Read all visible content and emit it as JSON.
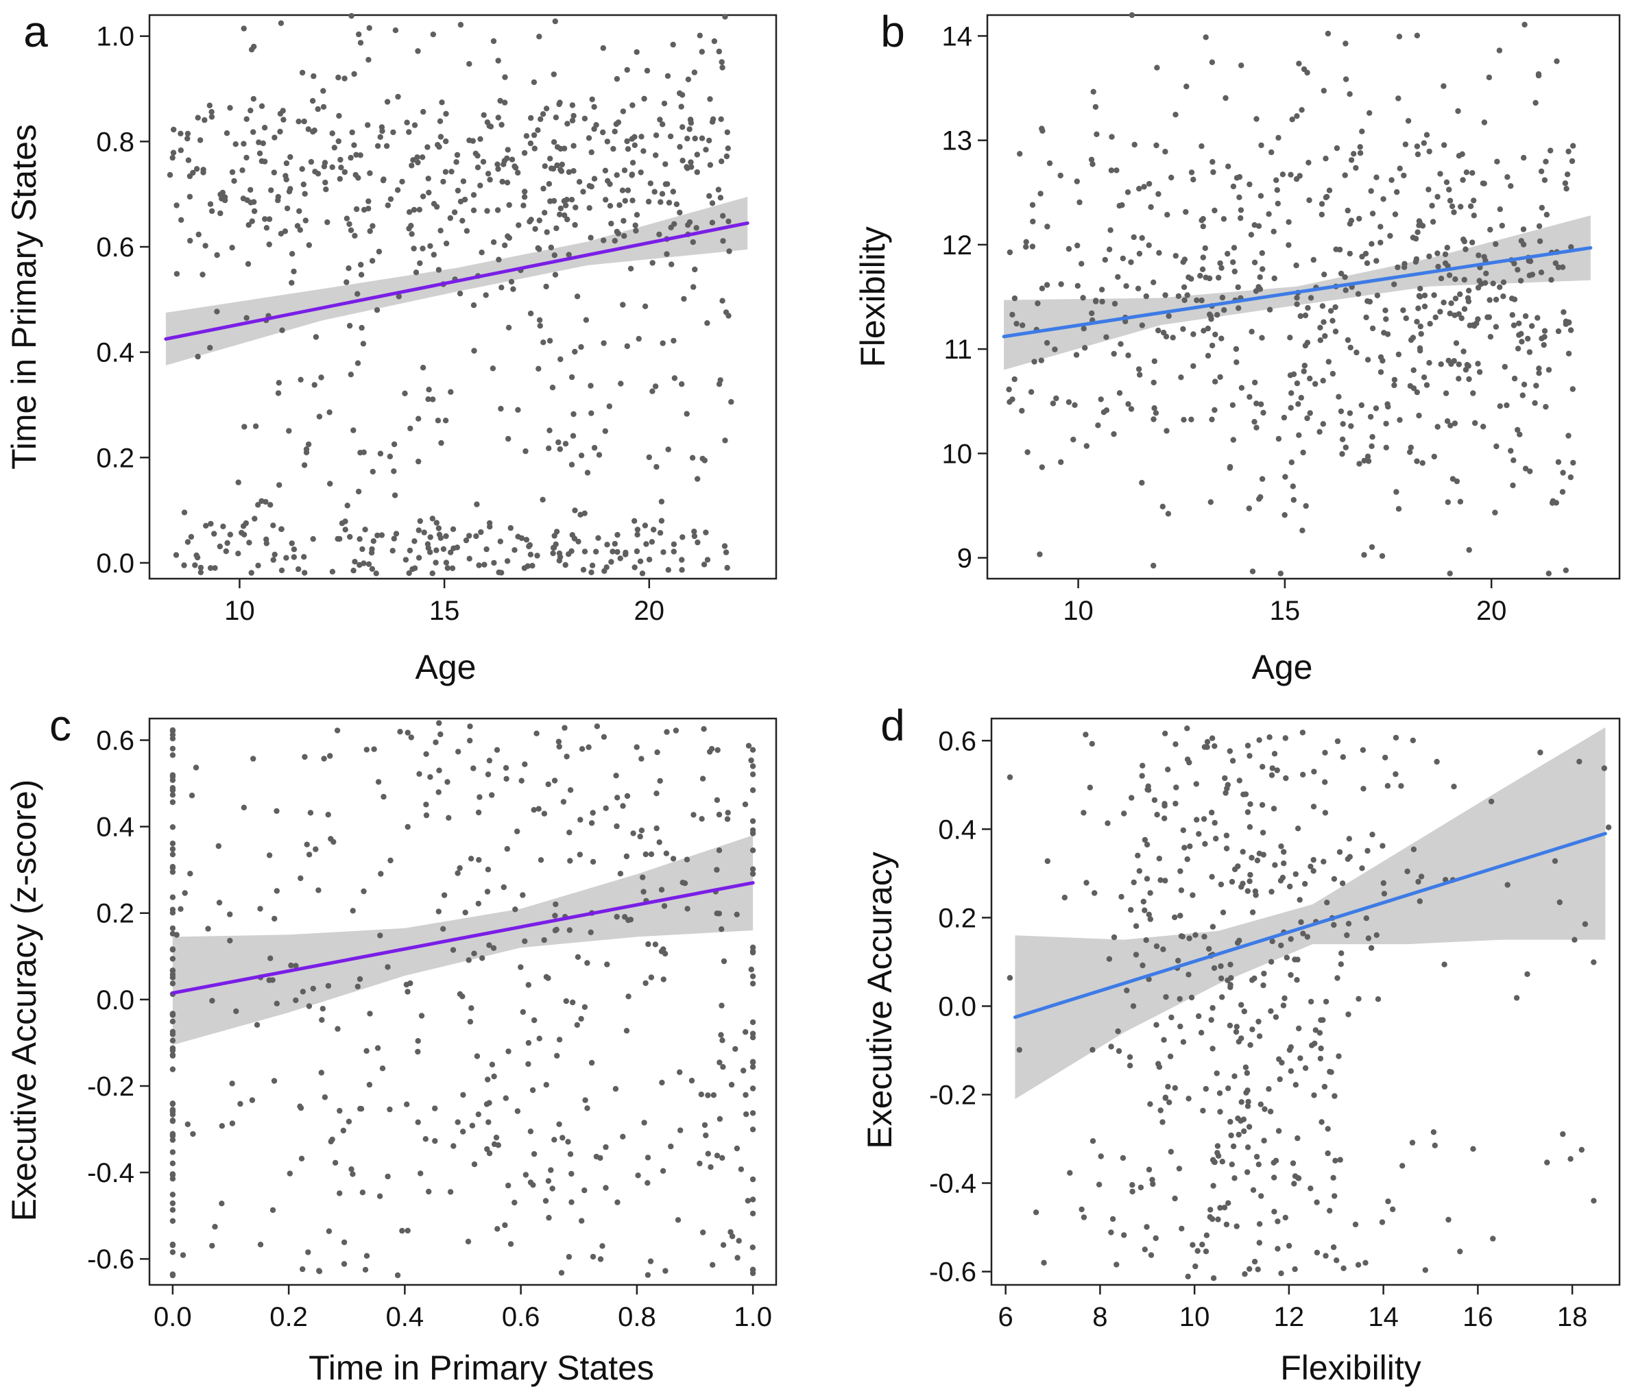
{
  "figure": {
    "panels": [
      {
        "letter": "a"
      },
      {
        "letter": "b"
      },
      {
        "letter": "c"
      },
      {
        "letter": "d"
      }
    ]
  },
  "colors": {
    "points": "#5f5f5f",
    "band": "#c8c8c8",
    "purple_line": "#7a1ee6",
    "blue_line": "#3d7be6"
  },
  "chart_data": [
    {
      "type": "scatter",
      "xlabel": "Age",
      "ylabel": "Time in Primary States",
      "xlim": [
        7.8,
        23.1
      ],
      "ylim": [
        -0.03,
        1.04
      ],
      "xticks": [
        10,
        15,
        20
      ],
      "yticks": [
        0.0,
        0.2,
        0.4,
        0.6,
        0.8,
        1.0
      ],
      "ytick_labels": [
        "0.0",
        "0.2",
        "0.4",
        "0.6",
        "0.8",
        "1.0"
      ],
      "grid": false,
      "line_color": "purple_line",
      "n_points": 820,
      "x_range": [
        8.3,
        22.0
      ],
      "y_range": [
        -0.02,
        1.04
      ],
      "point_note": "dense cloud, heavier around age 14-19 and y 0.6-0.85, plus a band near 0",
      "fit": {
        "x0": 8.2,
        "y0": 0.425,
        "x1": 22.4,
        "y1": 0.645
      },
      "ci": [
        {
          "x": 8.2,
          "lo": 0.375,
          "hi": 0.475
        },
        {
          "x": 12,
          "lo": 0.46,
          "hi": 0.52
        },
        {
          "x": 15.3,
          "lo": 0.515,
          "hi": 0.56
        },
        {
          "x": 18.5,
          "lo": 0.565,
          "hi": 0.61
        },
        {
          "x": 22.4,
          "lo": 0.595,
          "hi": 0.695
        }
      ]
    },
    {
      "type": "scatter",
      "xlabel": "Age",
      "ylabel": "Flexibility",
      "xlim": [
        7.8,
        23.1
      ],
      "ylim": [
        8.8,
        14.2
      ],
      "xticks": [
        10,
        15,
        20
      ],
      "yticks": [
        9,
        10,
        11,
        12,
        13,
        14
      ],
      "ytick_labels": [
        "9",
        "10",
        "11",
        "12",
        "13",
        "14"
      ],
      "grid": false,
      "line_color": "blue_line",
      "n_points": 680,
      "x_range": [
        8.3,
        22.0
      ],
      "y_range": [
        8.85,
        14.2
      ],
      "point_note": "broad cloud centred near 11.5",
      "fit": {
        "x0": 8.2,
        "y0": 11.12,
        "x1": 22.4,
        "y1": 11.97
      },
      "ci": [
        {
          "x": 8.2,
          "lo": 10.8,
          "hi": 11.47
        },
        {
          "x": 12,
          "lo": 11.23,
          "hi": 11.49
        },
        {
          "x": 15.3,
          "lo": 11.42,
          "hi": 11.6
        },
        {
          "x": 18.5,
          "lo": 11.6,
          "hi": 11.87
        },
        {
          "x": 22.4,
          "lo": 11.66,
          "hi": 12.28
        }
      ]
    },
    {
      "type": "scatter",
      "xlabel": "Time in Primary States",
      "ylabel": "Executive Accuracy (z-score)",
      "xlim": [
        -0.04,
        1.04
      ],
      "ylim": [
        -0.66,
        0.65
      ],
      "xticks": [
        0.0,
        0.2,
        0.4,
        0.6,
        0.8,
        1.0
      ],
      "xtick_labels": [
        "0.0",
        "0.2",
        "0.4",
        "0.6",
        "0.8",
        "1.0"
      ],
      "yticks": [
        -0.6,
        -0.4,
        -0.2,
        0.0,
        0.2,
        0.4,
        0.6
      ],
      "ytick_labels": [
        "-0.6",
        "-0.4",
        "-0.2",
        "0.0",
        "0.2",
        "0.4",
        "0.6"
      ],
      "grid": false,
      "line_color": "purple_line",
      "n_points": 520,
      "x_range": [
        0.0,
        1.0
      ],
      "y_range": [
        -0.64,
        0.64
      ],
      "point_note": "columns of points at x = 0 and x = 1, scattered cloud between",
      "fit": {
        "x0": 0.0,
        "y0": 0.015,
        "x1": 1.0,
        "y1": 0.27
      },
      "ci": [
        {
          "x": 0.0,
          "lo": -0.105,
          "hi": 0.145
        },
        {
          "x": 0.2,
          "lo": -0.03,
          "hi": 0.15
        },
        {
          "x": 0.4,
          "lo": 0.055,
          "hi": 0.165
        },
        {
          "x": 0.6,
          "lo": 0.12,
          "hi": 0.21
        },
        {
          "x": 0.8,
          "lo": 0.145,
          "hi": 0.29
        },
        {
          "x": 1.0,
          "lo": 0.16,
          "hi": 0.38
        }
      ]
    },
    {
      "type": "scatter",
      "xlabel": "Flexibility",
      "ylabel": "Executive Accuracy",
      "xlim": [
        5.7,
        19.0
      ],
      "ylim": [
        -0.63,
        0.65
      ],
      "xticks": [
        6,
        8,
        10,
        12,
        14,
        16,
        18
      ],
      "yticks": [
        -0.6,
        -0.4,
        -0.2,
        0.0,
        0.2,
        0.4,
        0.6
      ],
      "ytick_labels": [
        "-0.6",
        "-0.4",
        "-0.2",
        "0.0",
        "0.2",
        "0.4",
        "0.6"
      ],
      "grid": false,
      "line_color": "blue_line",
      "n_points": 470,
      "x_range": [
        6.0,
        18.8
      ],
      "y_range": [
        -0.62,
        0.64
      ],
      "point_note": "cloud concentrated around flexibility 9-13, sparse tails",
      "fit": {
        "x0": 6.2,
        "y0": -0.025,
        "x1": 18.7,
        "y1": 0.39
      },
      "ci": [
        {
          "x": 6.2,
          "lo": -0.21,
          "hi": 0.16
        },
        {
          "x": 8.5,
          "lo": -0.06,
          "hi": 0.15
        },
        {
          "x": 10.5,
          "lo": 0.05,
          "hi": 0.17
        },
        {
          "x": 12.5,
          "lo": 0.14,
          "hi": 0.23
        },
        {
          "x": 14.5,
          "lo": 0.14,
          "hi": 0.36
        },
        {
          "x": 16.5,
          "lo": 0.15,
          "hi": 0.49
        },
        {
          "x": 18.7,
          "lo": 0.15,
          "hi": 0.63
        }
      ]
    }
  ]
}
